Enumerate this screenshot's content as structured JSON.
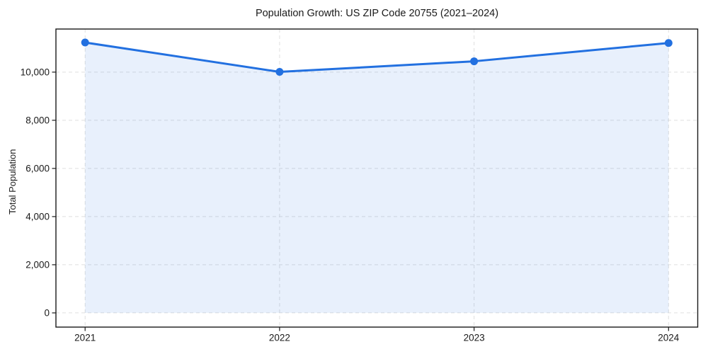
{
  "title": "Population Growth: US ZIP Code 20755 (2021–2024)",
  "chart_data": {
    "type": "area",
    "title": "Population Growth: US ZIP Code 20755 (2021–2024)",
    "xlabel": "",
    "ylabel": "Total Population",
    "x": [
      2021,
      2022,
      2023,
      2024
    ],
    "categories": [
      "2021",
      "2022",
      "2023",
      "2024"
    ],
    "series": [
      {
        "name": "Total Population",
        "values": [
          11230,
          10010,
          10450,
          11210
        ]
      }
    ],
    "baseline": 0,
    "xlim": [
      2020.85,
      2024.15
    ],
    "ylim": [
      -590,
      11790
    ],
    "xticks": [
      2021,
      2022,
      2023,
      2024
    ],
    "xtick_labels": [
      "2021",
      "2022",
      "2023",
      "2024"
    ],
    "yticks": [
      0,
      2000,
      4000,
      6000,
      8000,
      10000
    ],
    "ytick_labels": [
      "0",
      "2,000",
      "4,000",
      "6,000",
      "8,000",
      "10,000"
    ],
    "grid": true,
    "grid_style": "dashed",
    "legend": "none",
    "marker": "circle",
    "colors": {
      "line": "#2270e0",
      "fill": "#2270e0",
      "fill_opacity": 0.1,
      "grid": "#dfdfdf",
      "axis": "#1a1a1a",
      "text": "#1a1a1a",
      "background": "#ffffff"
    }
  }
}
